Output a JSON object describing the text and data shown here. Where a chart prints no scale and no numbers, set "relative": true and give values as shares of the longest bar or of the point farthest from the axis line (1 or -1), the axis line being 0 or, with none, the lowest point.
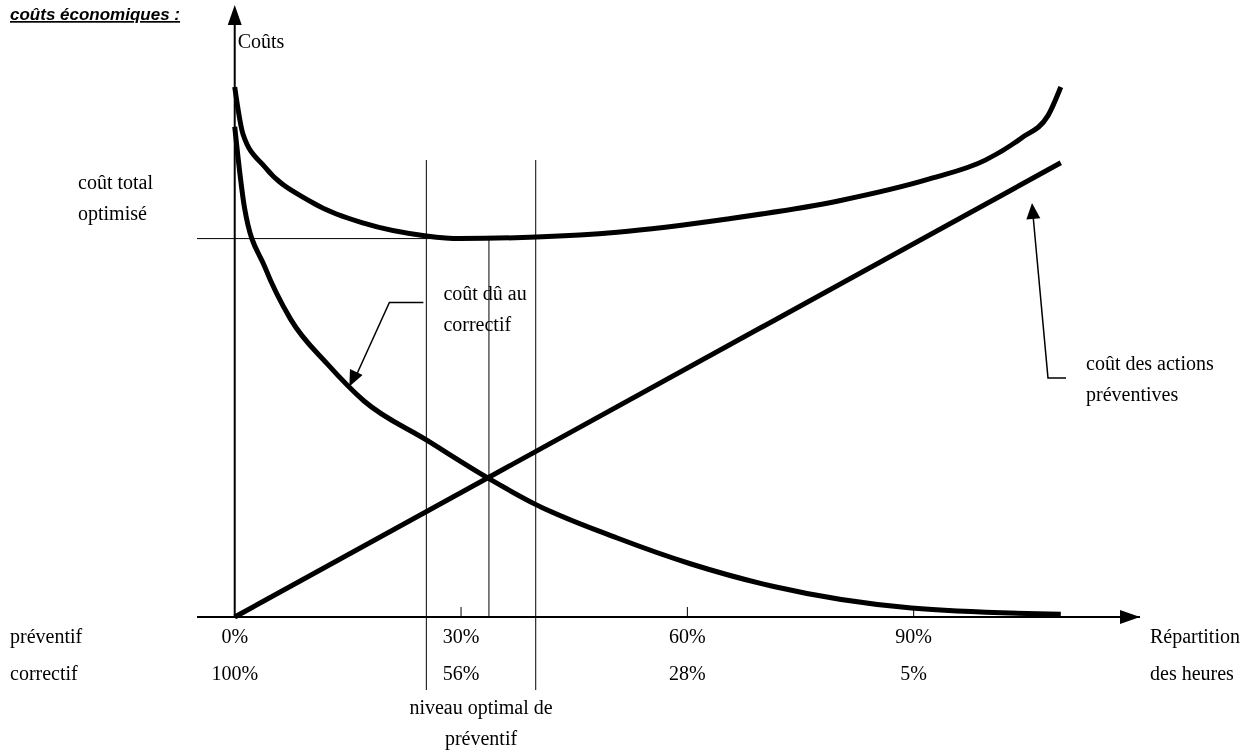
{
  "chart_data": {
    "type": "line",
    "title": "coûts économiques :",
    "xlabel": "Répartition des heures",
    "ylabel": "Coûts",
    "relative": true,
    "xlim": [
      -5,
      120
    ],
    "xticks": [
      {
        "value": 0,
        "label": "0%"
      },
      {
        "value": 30,
        "label": "30%"
      },
      {
        "value": 60,
        "label": "60%"
      },
      {
        "value": 90,
        "label": "90%"
      }
    ],
    "series": [
      {
        "color": "#000000",
        "x": [
          0,
          1.1,
          4.0,
          9.9,
          17.1,
          25.4,
          29.8,
          40.0,
          50.7,
          65.3,
          80,
          92.2,
          99.5,
          104.3,
          107.8,
          109.5
        ],
        "values": [
          1.0,
          0.911,
          0.849,
          0.785,
          0.743,
          0.719,
          0.714,
          0.717,
          0.726,
          0.751,
          0.785,
          0.827,
          0.862,
          0.904,
          0.946,
          1.0
        ]
      },
      {
        "color": "#000000",
        "x": [
          0,
          1.3,
          4.0,
          7.4,
          12.3,
          17.1,
          25.4,
          33.7,
          39.8,
          50.7,
          60.5,
          71.3,
          89.7,
          109.5
        ],
        "values": [
          0.925,
          0.772,
          0.66,
          0.562,
          0.477,
          0.408,
          0.334,
          0.261,
          0.213,
          0.149,
          0.1,
          0.058,
          0.017,
          0.005
        ]
      },
      {
        "name": "coût des actions préventives",
        "color": "#000000",
        "x": [
          0,
          109.5
        ],
        "values": [
          0,
          0.857
        ]
      }
    ],
    "ref_lines": [
      {
        "axis": "y",
        "value": 0.714,
        "label": "coût total optimisé"
      },
      {
        "axis": "x",
        "value": 25.4
      },
      {
        "axis": "x",
        "value": 33.7
      },
      {
        "axis": "x",
        "value": 39.9
      }
    ],
    "annotations": [
      "préventif",
      "correctif",
      "100%",
      "56%",
      "28%",
      "5%",
      "niveau optimal de préventif",
      {
        "text": "coût dû au correctif",
        "x": 15.2,
        "y": 0.435
      }
    ],
    "marker": "none",
    "line_style": "solid"
  }
}
